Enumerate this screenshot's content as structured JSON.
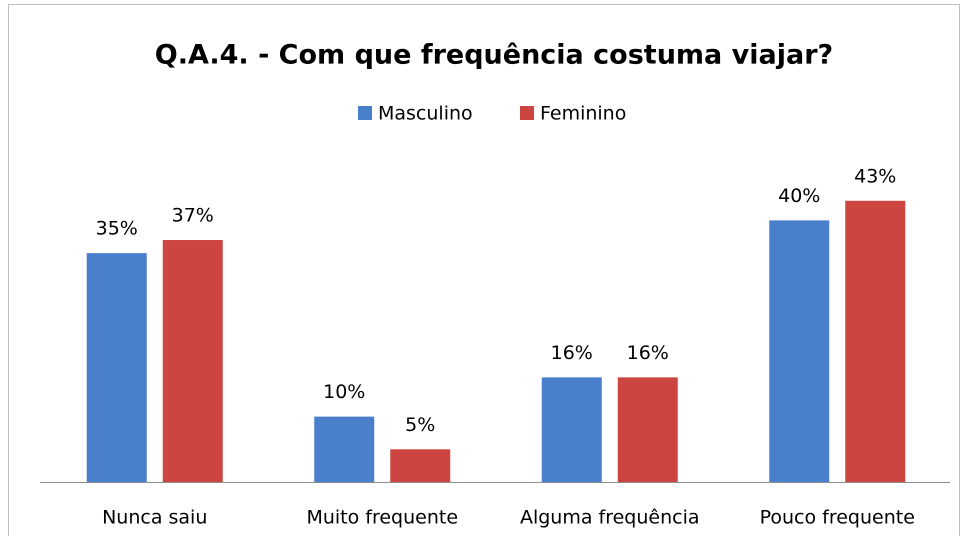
{
  "chart_data": {
    "type": "bar",
    "title": "Q.A.4. - Com que frequência costuma viajar?",
    "categories": [
      "Nunca saiu",
      "Muito frequente",
      "Alguma frequência",
      "Pouco frequente"
    ],
    "series": [
      {
        "name": "Masculino",
        "color": "#4a7fcc",
        "values": [
          35,
          10,
          16,
          40
        ],
        "value_labels": [
          "35%",
          "10%",
          "16%",
          "40%"
        ]
      },
      {
        "name": "Feminino",
        "color": "#cc4541",
        "values": [
          37,
          5,
          16,
          43
        ],
        "value_labels": [
          "37%",
          "5%",
          "16%",
          "43%"
        ]
      }
    ],
    "legend": "top"
  }
}
